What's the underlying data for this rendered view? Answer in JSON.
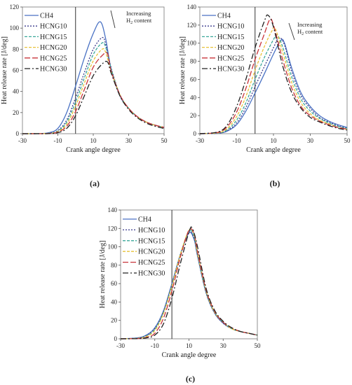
{
  "series_styles": [
    {
      "name": "CH4",
      "color": "#4a72c4",
      "dash": ""
    },
    {
      "name": "HCNG10",
      "color": "#3a3a8c",
      "dash": "2,2"
    },
    {
      "name": "HCNG15",
      "color": "#3aa89a",
      "dash": "4,2"
    },
    {
      "name": "HCNG20",
      "color": "#e8c23a",
      "dash": "4,2"
    },
    {
      "name": "HCNG25",
      "color": "#c8343a",
      "dash": "8,3"
    },
    {
      "name": "HCNG30",
      "color": "#222222",
      "dash": "8,3,2,3"
    }
  ],
  "chart_data": [
    {
      "type": "line",
      "panel_label": "(a)",
      "xlabel": "Crank angle degree",
      "ylabel": "Heat release rate [J/deg]",
      "xlim": [
        -30,
        50
      ],
      "ylim": [
        0,
        120
      ],
      "xticks": [
        -30,
        -10,
        10,
        30,
        50
      ],
      "yticks": [
        0,
        20,
        40,
        60,
        80,
        100,
        120
      ],
      "annotation": {
        "line1": "Increasing",
        "line2_prefix": "H",
        "line2_sub": "2",
        "line2_suffix": " content"
      },
      "series": [
        {
          "name": "CH4",
          "x": [
            -30,
            -20,
            -15,
            -10,
            -5,
            0,
            5,
            10,
            14,
            17,
            20,
            25,
            30,
            35,
            40,
            45,
            50
          ],
          "values": [
            0,
            0.2,
            1,
            5,
            20,
            45,
            72,
            95,
            106,
            90,
            62,
            36,
            24,
            16,
            11,
            8,
            6
          ]
        },
        {
          "name": "HCNG10",
          "x": [
            -30,
            -20,
            -15,
            -10,
            -5,
            0,
            5,
            10,
            15,
            17,
            20,
            25,
            30,
            35,
            40,
            45,
            50
          ],
          "values": [
            0,
            0.1,
            0.5,
            3,
            13,
            34,
            58,
            80,
            91,
            85,
            63,
            37,
            24,
            16,
            11,
            8,
            6
          ]
        },
        {
          "name": "HCNG15",
          "x": [
            -30,
            -20,
            -15,
            -10,
            -5,
            0,
            5,
            10,
            15,
            17,
            20,
            25,
            30,
            35,
            40,
            45,
            50
          ],
          "values": [
            0,
            0.1,
            0.4,
            2.5,
            11,
            30,
            53,
            75,
            86,
            82,
            62,
            37,
            24,
            16,
            11,
            8,
            6
          ]
        },
        {
          "name": "HCNG20",
          "x": [
            -30,
            -20,
            -15,
            -10,
            -5,
            0,
            5,
            10,
            15,
            17,
            20,
            25,
            30,
            35,
            40,
            45,
            50
          ],
          "values": [
            0,
            0.1,
            0.3,
            2,
            9,
            26,
            48,
            69,
            80,
            77,
            60,
            37,
            24,
            16,
            11,
            8,
            6
          ]
        },
        {
          "name": "HCNG25",
          "x": [
            -30,
            -20,
            -15,
            -10,
            -5,
            0,
            5,
            10,
            15,
            18,
            20,
            25,
            30,
            35,
            40,
            45,
            50
          ],
          "values": [
            0,
            0,
            0.2,
            1.5,
            7,
            21,
            42,
            63,
            74,
            76,
            60,
            37,
            24,
            16,
            11,
            8,
            6
          ]
        },
        {
          "name": "HCNG30",
          "x": [
            -30,
            -20,
            -15,
            -10,
            -5,
            0,
            5,
            10,
            15,
            18,
            20,
            25,
            30,
            35,
            40,
            45,
            50
          ],
          "values": [
            0,
            0,
            0.1,
            1,
            5,
            17,
            36,
            55,
            66,
            68,
            58,
            36,
            23,
            15,
            10,
            7,
            5
          ]
        }
      ]
    },
    {
      "type": "line",
      "panel_label": "(b)",
      "xlabel": "Crank angle degree",
      "ylabel": "Heat release rate [J/deg]",
      "xlim": [
        -30,
        50
      ],
      "ylim": [
        0,
        140
      ],
      "xticks": [
        -30,
        -10,
        10,
        30,
        50
      ],
      "yticks": [
        0,
        20,
        40,
        60,
        80,
        100,
        120,
        140
      ],
      "annotation": {
        "line1": "Increasing",
        "line2_prefix": "H",
        "line2_sub": "2",
        "line2_suffix": " content"
      },
      "series": [
        {
          "name": "CH4",
          "x": [
            -30,
            -20,
            -15,
            -10,
            -5,
            0,
            5,
            10,
            14,
            16,
            20,
            25,
            30,
            35,
            40,
            45,
            50
          ],
          "values": [
            0,
            0.5,
            3,
            10,
            25,
            45,
            66,
            88,
            103,
            100,
            72,
            45,
            30,
            20,
            14,
            10,
            7
          ]
        },
        {
          "name": "HCNG10",
          "x": [
            -30,
            -20,
            -15,
            -10,
            -5,
            0,
            5,
            10,
            13,
            16,
            20,
            25,
            30,
            35,
            40,
            45,
            50
          ],
          "values": [
            0,
            0.6,
            3.5,
            12,
            29,
            52,
            74,
            95,
            106,
            98,
            68,
            42,
            28,
            18,
            13,
            9,
            6
          ]
        },
        {
          "name": "HCNG15",
          "x": [
            -30,
            -20,
            -15,
            -10,
            -5,
            0,
            5,
            10,
            12,
            15,
            20,
            25,
            30,
            35,
            40,
            45,
            50
          ],
          "values": [
            0,
            0.8,
            4.5,
            15,
            34,
            60,
            84,
            104,
            109,
            96,
            62,
            38,
            25,
            17,
            12,
            8,
            6
          ]
        },
        {
          "name": "HCNG20",
          "x": [
            -30,
            -20,
            -15,
            -10,
            -5,
            0,
            5,
            9,
            11,
            15,
            20,
            25,
            30,
            35,
            40,
            45,
            50
          ],
          "values": [
            0,
            1,
            6,
            19,
            41,
            70,
            96,
            113,
            116,
            90,
            56,
            34,
            22,
            15,
            11,
            7,
            5
          ]
        },
        {
          "name": "HCNG25",
          "x": [
            -30,
            -20,
            -15,
            -10,
            -5,
            0,
            5,
            8,
            10,
            15,
            20,
            25,
            30,
            35,
            40,
            45,
            50
          ],
          "values": [
            0,
            1.5,
            8,
            24,
            50,
            82,
            110,
            126,
            120,
            82,
            50,
            30,
            20,
            14,
            10,
            7,
            5
          ]
        },
        {
          "name": "HCNG30",
          "x": [
            -30,
            -20,
            -15,
            -10,
            -5,
            0,
            5,
            7,
            10,
            15,
            20,
            25,
            30,
            35,
            40,
            45,
            50
          ],
          "values": [
            0,
            2,
            10,
            30,
            60,
            95,
            124,
            131,
            118,
            75,
            45,
            28,
            18,
            13,
            9,
            6,
            4
          ]
        }
      ]
    },
    {
      "type": "line",
      "panel_label": "(c)",
      "xlabel": "Crank angle degree",
      "ylabel": "Heat release rate [J/deg]",
      "xlim": [
        -30,
        50
      ],
      "ylim": [
        0,
        140
      ],
      "xticks": [
        -30,
        -10,
        10,
        30,
        50
      ],
      "yticks": [
        0,
        20,
        40,
        60,
        80,
        100,
        120,
        140
      ],
      "series": [
        {
          "name": "CH4",
          "x": [
            -30,
            -20,
            -15,
            -10,
            -5,
            0,
            5,
            10,
            13,
            15,
            20,
            25,
            30,
            35,
            40,
            45,
            50
          ],
          "values": [
            0,
            1,
            4,
            12,
            30,
            60,
            92,
            115,
            108,
            90,
            50,
            28,
            17,
            11,
            8,
            6,
            4
          ]
        },
        {
          "name": "HCNG10",
          "x": [
            -30,
            -20,
            -15,
            -10,
            -5,
            0,
            5,
            10,
            13,
            15,
            20,
            25,
            30,
            35,
            40,
            45,
            50
          ],
          "values": [
            0,
            0.8,
            3.5,
            11,
            29,
            59,
            92,
            116,
            109,
            91,
            50,
            28,
            17,
            11,
            8,
            6,
            4
          ]
        },
        {
          "name": "HCNG15",
          "x": [
            -30,
            -20,
            -15,
            -10,
            -5,
            0,
            5,
            10,
            13,
            15,
            20,
            25,
            30,
            35,
            40,
            45,
            50
          ],
          "values": [
            0,
            0.6,
            3,
            10,
            28,
            58,
            92,
            117,
            111,
            92,
            51,
            29,
            18,
            11,
            8,
            6,
            4
          ]
        },
        {
          "name": "HCNG20",
          "x": [
            -30,
            -20,
            -15,
            -10,
            -5,
            0,
            5,
            10,
            13,
            15,
            20,
            25,
            30,
            35,
            40,
            45,
            50
          ],
          "values": [
            0,
            0.5,
            2.5,
            9,
            27,
            57,
            92,
            118,
            113,
            93,
            52,
            29,
            18,
            11,
            8,
            6,
            4
          ]
        },
        {
          "name": "HCNG25",
          "x": [
            -30,
            -20,
            -15,
            -10,
            -5,
            0,
            5,
            10,
            13,
            15,
            20,
            25,
            30,
            35,
            40,
            45,
            50
          ],
          "values": [
            0,
            0.3,
            1.5,
            6,
            22,
            52,
            89,
            118,
            114,
            95,
            53,
            30,
            18,
            12,
            8,
            6,
            4
          ]
        },
        {
          "name": "HCNG30",
          "x": [
            -30,
            -20,
            -15,
            -10,
            -5,
            0,
            5,
            10,
            12,
            15,
            20,
            25,
            30,
            35,
            40,
            45,
            50
          ],
          "values": [
            0,
            0.2,
            1,
            4,
            16,
            44,
            82,
            116,
            120,
            100,
            55,
            31,
            19,
            12,
            8,
            6,
            4
          ]
        }
      ]
    }
  ]
}
